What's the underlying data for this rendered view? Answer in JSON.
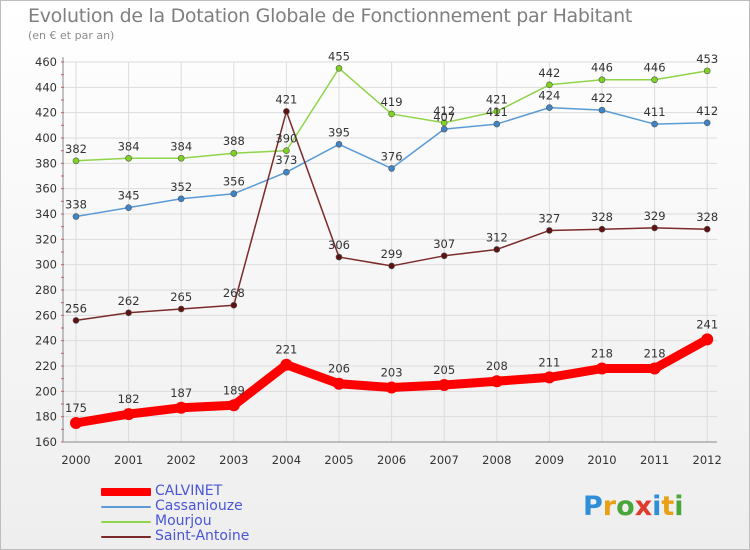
{
  "chart_data": {
    "type": "line",
    "title": "Evolution de la Dotation Globale de Fonctionnement par Habitant",
    "subtitle": "(en € et par an)",
    "xlabel": "",
    "ylabel": "",
    "x": [
      2000,
      2001,
      2002,
      2003,
      2004,
      2005,
      2006,
      2007,
      2008,
      2009,
      2010,
      2011,
      2012
    ],
    "ylim": [
      160,
      460
    ],
    "yticks": [
      160,
      180,
      200,
      220,
      240,
      260,
      280,
      300,
      320,
      340,
      360,
      380,
      400,
      420,
      440,
      460
    ],
    "grid": true,
    "series": [
      {
        "name": "Mourjou",
        "color": "#8fd44a",
        "marker_color": "#7ed321",
        "width": 1.5,
        "values": [
          382,
          384,
          384,
          388,
          390,
          455,
          419,
          412,
          421,
          442,
          446,
          446,
          453
        ]
      },
      {
        "name": "Cassaniouze",
        "color": "#5b9bd5",
        "marker_color": "#3d85c6",
        "width": 1.5,
        "values": [
          338,
          345,
          352,
          356,
          373,
          395,
          376,
          407,
          411,
          424,
          422,
          411,
          412
        ]
      },
      {
        "name": "Saint-Antoine",
        "color": "#7b2a2a",
        "marker_color": "#5e1212",
        "width": 1.5,
        "values": [
          256,
          262,
          265,
          268,
          421,
          306,
          299,
          307,
          312,
          327,
          328,
          329,
          328
        ]
      },
      {
        "name": "CALVINET",
        "color": "#ff0000",
        "marker_color": "#ff0000",
        "width": 9,
        "values": [
          175,
          182,
          187,
          189,
          221,
          206,
          203,
          205,
          208,
          211,
          218,
          218,
          241
        ]
      }
    ],
    "legend": [
      "CALVINET",
      "Cassaniouze",
      "Mourjou",
      "Saint-Antoine"
    ],
    "legend_position": "bottom-left"
  },
  "branding": {
    "logo_letters": [
      {
        "ch": "P",
        "color": "#2e8fd8"
      },
      {
        "ch": "r",
        "color": "#e8a016"
      },
      {
        "ch": "o",
        "color": "#4aa63a"
      },
      {
        "ch": "x",
        "color": "#e03c2e"
      },
      {
        "ch": "i",
        "color": "#2e8fd8"
      },
      {
        "ch": "t",
        "color": "#e8a016"
      },
      {
        "ch": "i",
        "color": "#4aa63a"
      }
    ]
  }
}
